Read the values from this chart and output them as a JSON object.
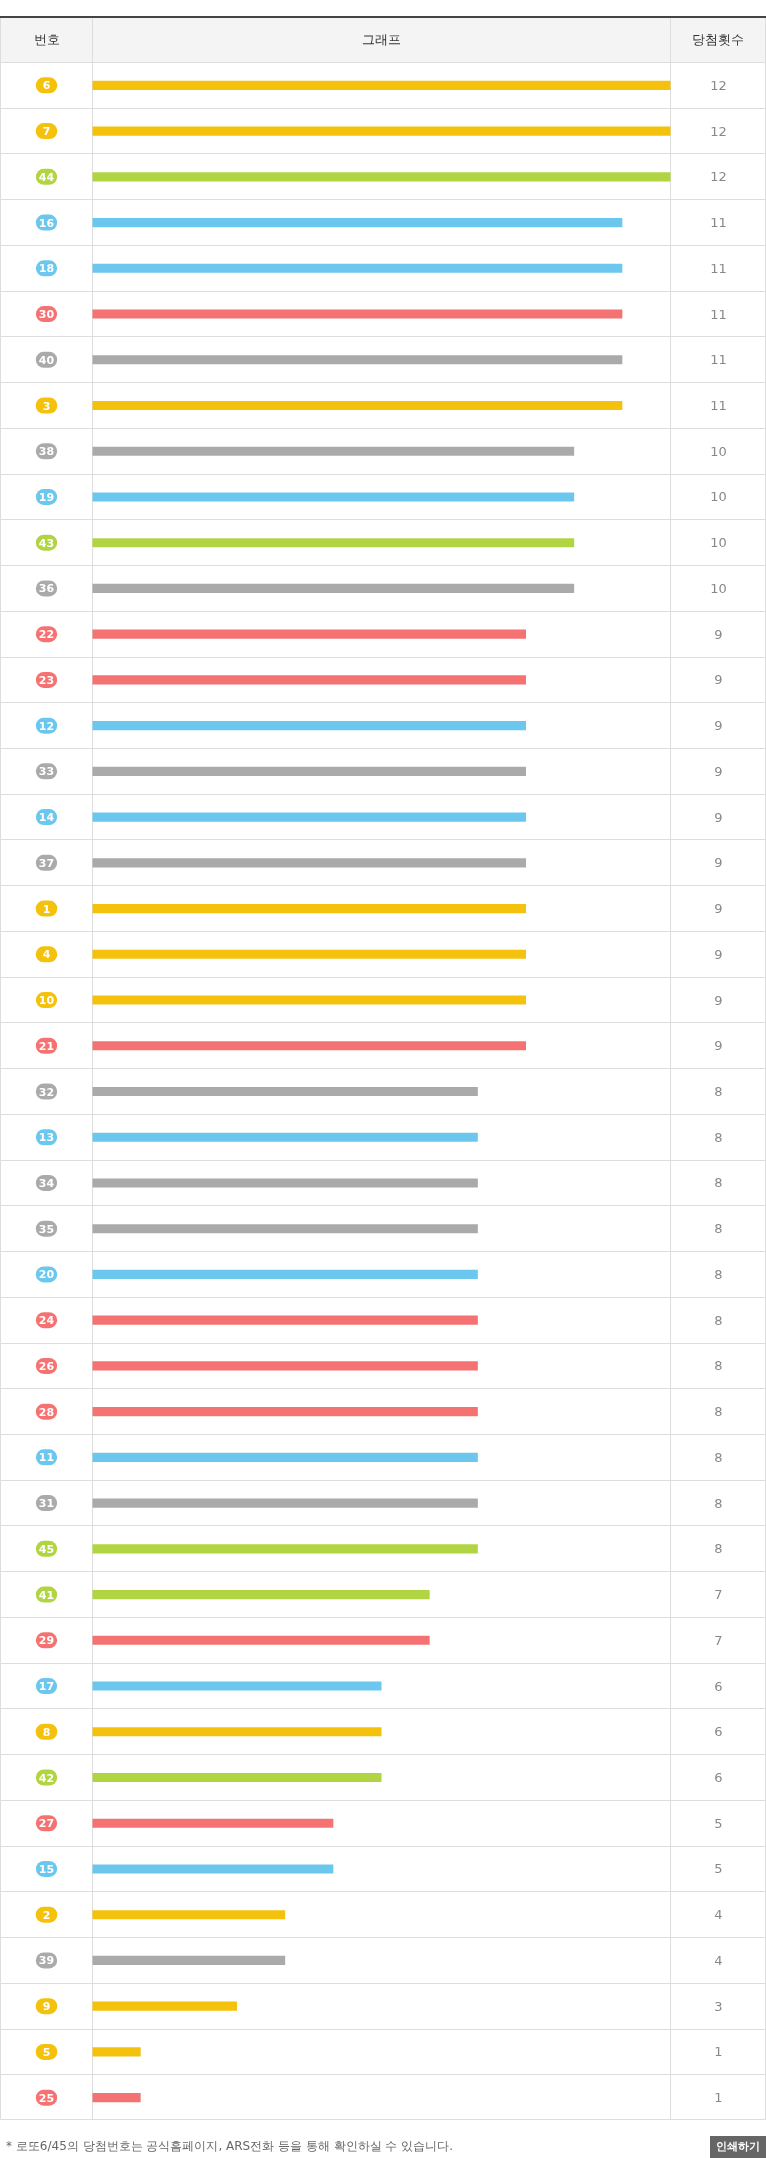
{
  "chart_data": {
    "type": "bar",
    "orientation": "horizontal",
    "categories": [
      "6",
      "7",
      "44",
      "16",
      "18",
      "30",
      "40",
      "3",
      "38",
      "19",
      "43",
      "36",
      "22",
      "23",
      "12",
      "33",
      "14",
      "37",
      "1",
      "4",
      "10",
      "21",
      "32",
      "13",
      "34",
      "35",
      "20",
      "24",
      "26",
      "28",
      "11",
      "31",
      "45",
      "41",
      "29",
      "17",
      "8",
      "42",
      "27",
      "15",
      "2",
      "39",
      "9",
      "5",
      "25"
    ],
    "values": [
      12,
      12,
      12,
      11,
      11,
      11,
      11,
      11,
      10,
      10,
      10,
      10,
      9,
      9,
      9,
      9,
      9,
      9,
      9,
      9,
      9,
      9,
      8,
      8,
      8,
      8,
      8,
      8,
      8,
      8,
      8,
      8,
      8,
      7,
      7,
      6,
      6,
      6,
      5,
      5,
      4,
      4,
      3,
      1,
      1
    ],
    "colors": [
      "#f4c20c",
      "#f4c20c",
      "#b1d443",
      "#6bc7ee",
      "#6bc7ee",
      "#f47372",
      "#aaaaaa",
      "#f4c20c",
      "#aaaaaa",
      "#6bc7ee",
      "#b1d443",
      "#aaaaaa",
      "#f47372",
      "#f47372",
      "#6bc7ee",
      "#aaaaaa",
      "#6bc7ee",
      "#aaaaaa",
      "#f4c20c",
      "#f4c20c",
      "#f4c20c",
      "#f47372",
      "#aaaaaa",
      "#6bc7ee",
      "#aaaaaa",
      "#aaaaaa",
      "#6bc7ee",
      "#f47372",
      "#f47372",
      "#f47372",
      "#6bc7ee",
      "#aaaaaa",
      "#b1d443",
      "#b1d443",
      "#f47372",
      "#6bc7ee",
      "#f4c20c",
      "#b1d443",
      "#f47372",
      "#6bc7ee",
      "#f4c20c",
      "#aaaaaa",
      "#f4c20c",
      "#f4c20c",
      "#f47372"
    ],
    "xlim": [
      0,
      12
    ],
    "data_labels": true,
    "tick_labels": "y",
    "grid": true,
    "annotations": [
      "번호",
      "그래프",
      "당첨횟수",
      "* 로또6/45의 당첨번호는 공식홈페이지, ARS전화 등을 통해 확인하실 수 있습니다.",
      "인쇄하기"
    ]
  }
}
